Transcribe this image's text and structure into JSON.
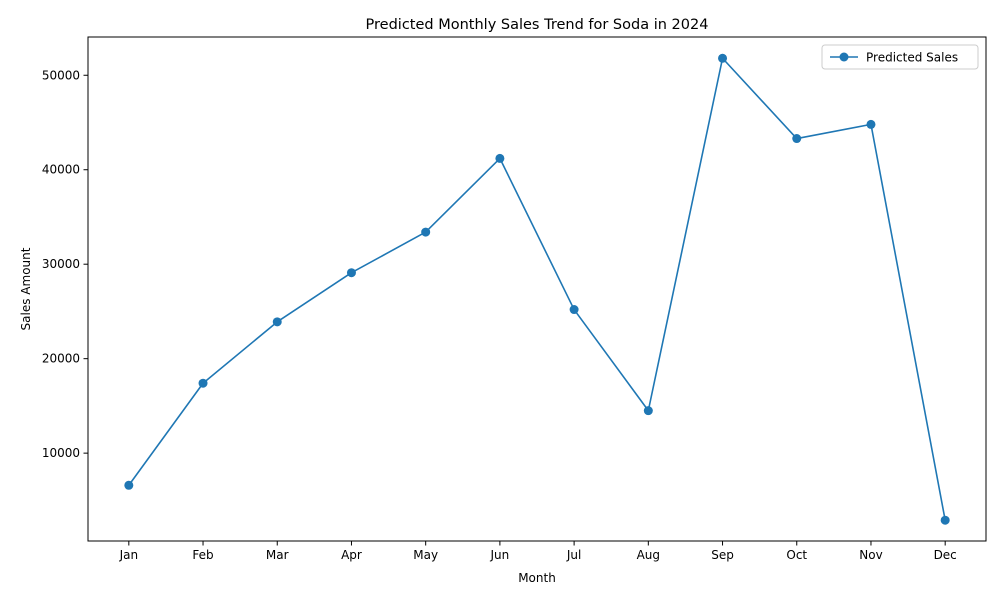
{
  "chart_data": {
    "type": "line",
    "title": "Predicted Monthly Sales Trend for Soda in 2024",
    "xlabel": "Month",
    "ylabel": "Sales Amount",
    "categories": [
      "Jan",
      "Feb",
      "Mar",
      "Apr",
      "May",
      "Jun",
      "Jul",
      "Aug",
      "Sep",
      "Oct",
      "Nov",
      "Dec"
    ],
    "series": [
      {
        "name": "Predicted Sales",
        "color": "#1f77b4",
        "marker": "circle",
        "values": [
          6600,
          17400,
          23900,
          29100,
          33400,
          41200,
          25200,
          14500,
          51800,
          43300,
          44800,
          2900
        ]
      }
    ],
    "yticks": [
      10000,
      20000,
      30000,
      40000,
      50000
    ],
    "ylim": [
      700,
      54050
    ],
    "grid": false,
    "legend": "top-right"
  }
}
